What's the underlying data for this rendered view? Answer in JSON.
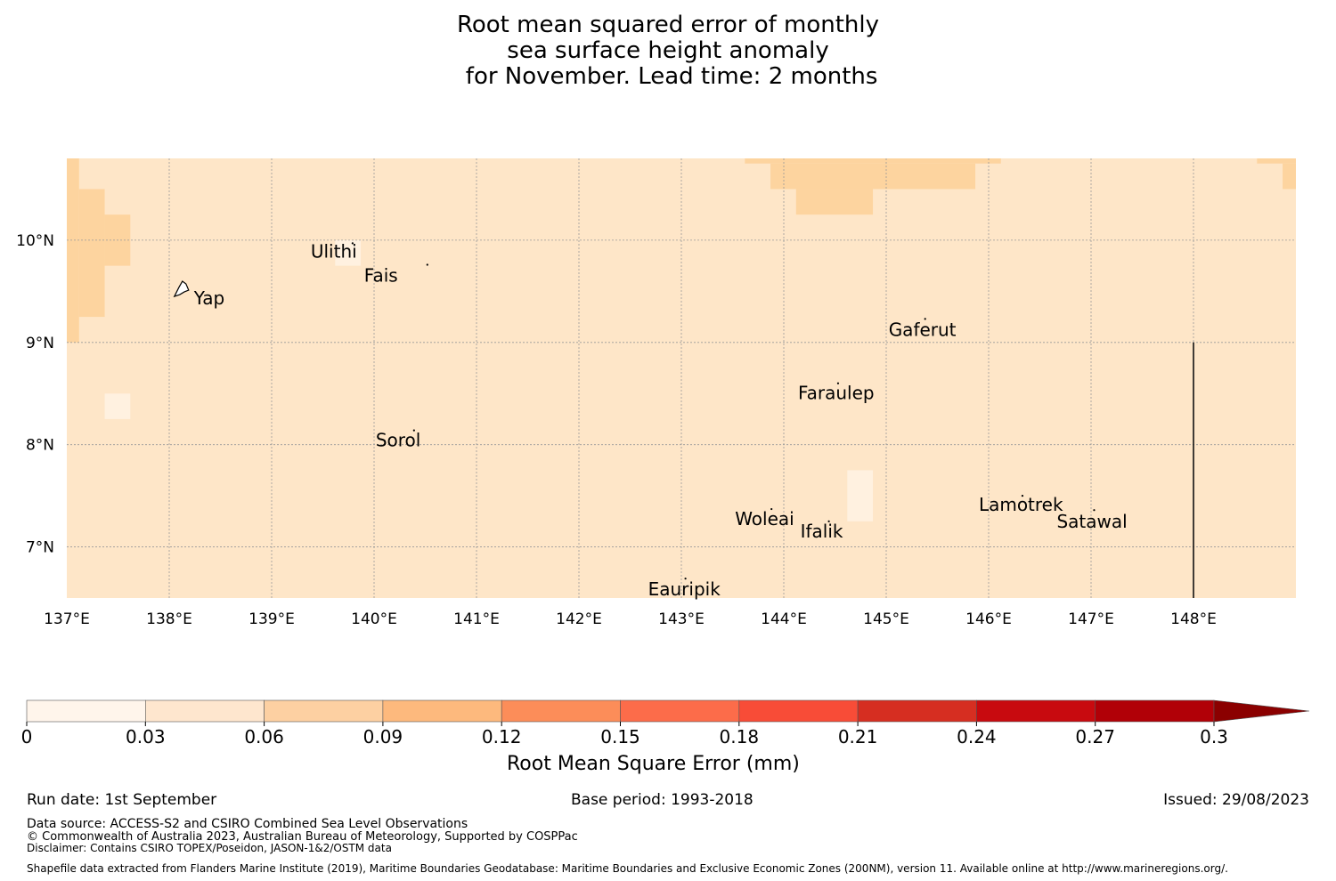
{
  "title": {
    "line1": "Root mean squared error of monthly",
    "line2": "sea surface height anomaly",
    "line3": " for November. Lead time: 2 months"
  },
  "map": {
    "lon_range": [
      137.0,
      149.0
    ],
    "lat_range": [
      6.5,
      10.8
    ],
    "lon_ticks": [
      137,
      138,
      139,
      140,
      141,
      142,
      143,
      144,
      145,
      146,
      147,
      148
    ],
    "lon_tick_labels": [
      "137°E",
      "138°E",
      "139°E",
      "140°E",
      "141°E",
      "142°E",
      "143°E",
      "144°E",
      "145°E",
      "146°E",
      "147°E",
      "148°E"
    ],
    "lat_ticks": [
      10,
      9,
      8,
      7
    ],
    "lat_tick_labels": [
      "10°N",
      "9°N",
      "8°N",
      "7°N"
    ],
    "colors": {
      "base": "#fee6c8",
      "mid": "#fdd49f",
      "low": "#fff1e0",
      "grid": "#999999"
    },
    "boundary_line": {
      "lon": 148.0,
      "lat_range": [
        6.5,
        9.0
      ]
    },
    "islands": [
      {
        "name": "Yap",
        "lon": 138.12,
        "lat": 9.52
      },
      {
        "name": "Ulithi",
        "lon": 139.79,
        "lat": 9.97
      },
      {
        "name": "Fais",
        "lon": 140.52,
        "lat": 9.76
      },
      {
        "name": "Gaferut",
        "lon": 145.38,
        "lat": 9.23
      },
      {
        "name": "Faraulep",
        "lon": 144.53,
        "lat": 8.6
      },
      {
        "name": "Sorol",
        "lon": 140.39,
        "lat": 8.14
      },
      {
        "name": "Woleai",
        "lon": 143.88,
        "lat": 7.37
      },
      {
        "name": "Ifalik",
        "lon": 144.44,
        "lat": 7.25
      },
      {
        "name": "Lamotrek",
        "lon": 146.33,
        "lat": 7.5
      },
      {
        "name": "Satawal",
        "lon": 147.03,
        "lat": 7.36
      },
      {
        "name": "Eauripik",
        "lon": 143.04,
        "lat": 6.69
      }
    ],
    "anomaly_cells": [
      {
        "lon0": 137.0,
        "lon1": 137.12,
        "lat0": 9.0,
        "lat1": 10.8,
        "level": "mid"
      },
      {
        "lon0": 137.12,
        "lon1": 137.37,
        "lat0": 9.25,
        "lat1": 10.5,
        "level": "mid"
      },
      {
        "lon0": 137.37,
        "lon1": 137.62,
        "lat0": 9.75,
        "lat1": 10.25,
        "level": "mid"
      },
      {
        "lon0": 137.37,
        "lon1": 137.62,
        "lat0": 8.25,
        "lat1": 8.5,
        "level": "low"
      },
      {
        "lon0": 139.62,
        "lon1": 139.87,
        "lat0": 9.75,
        "lat1": 10.0,
        "level": "low"
      },
      {
        "lon0": 143.62,
        "lon1": 146.12,
        "lat0": 10.75,
        "lat1": 10.8,
        "level": "mid"
      },
      {
        "lon0": 143.87,
        "lon1": 145.87,
        "lat0": 10.5,
        "lat1": 10.75,
        "level": "mid"
      },
      {
        "lon0": 144.12,
        "lon1": 144.87,
        "lat0": 10.25,
        "lat1": 10.5,
        "level": "mid"
      },
      {
        "lon0": 148.62,
        "lon1": 149.0,
        "lat0": 10.75,
        "lat1": 10.8,
        "level": "mid"
      },
      {
        "lon0": 148.87,
        "lon1": 149.0,
        "lat0": 10.5,
        "lat1": 10.75,
        "level": "mid"
      },
      {
        "lon0": 144.62,
        "lon1": 144.87,
        "lat0": 7.25,
        "lat1": 7.75,
        "level": "low"
      }
    ]
  },
  "colorbar": {
    "label": "Root Mean Square Error (mm)",
    "tick_labels": [
      "0",
      "0.03",
      "0.06",
      "0.09",
      "0.12",
      "0.15",
      "0.18",
      "0.21",
      "0.24",
      "0.27",
      "0.3"
    ],
    "colors": [
      "#fff5eb",
      "#fee6ce",
      "#fdd0a2",
      "#fdb97d",
      "#fc8d59",
      "#fc6c4a",
      "#f84c37",
      "#d62e21",
      "#c80a0f",
      "#b10007",
      "#8b0000"
    ]
  },
  "footer": {
    "run_date": "Run date: 1st September",
    "base_period": "Base period: 1993-2018",
    "issued": "Issued: 29/08/2023",
    "data_source": "Data source: ACCESS-S2 and CSIRO Combined Sea Level Observations",
    "copyright": "© Commonwealth of Australia 2023, Australian Bureau of Meteorology, Supported by COSPPac",
    "disclaimer": "Disclaimer: Contains CSIRO TOPEX/Poseidon, JASON-1&2/OSTM data",
    "shapefile": "Shapefile data extracted from Flanders Marine Institute (2019), Maritime Boundaries Geodatabase: Maritime Boundaries and Exclusive Economic Zones (200NM), version 11. Available online at http://www.marineregions.org/."
  }
}
